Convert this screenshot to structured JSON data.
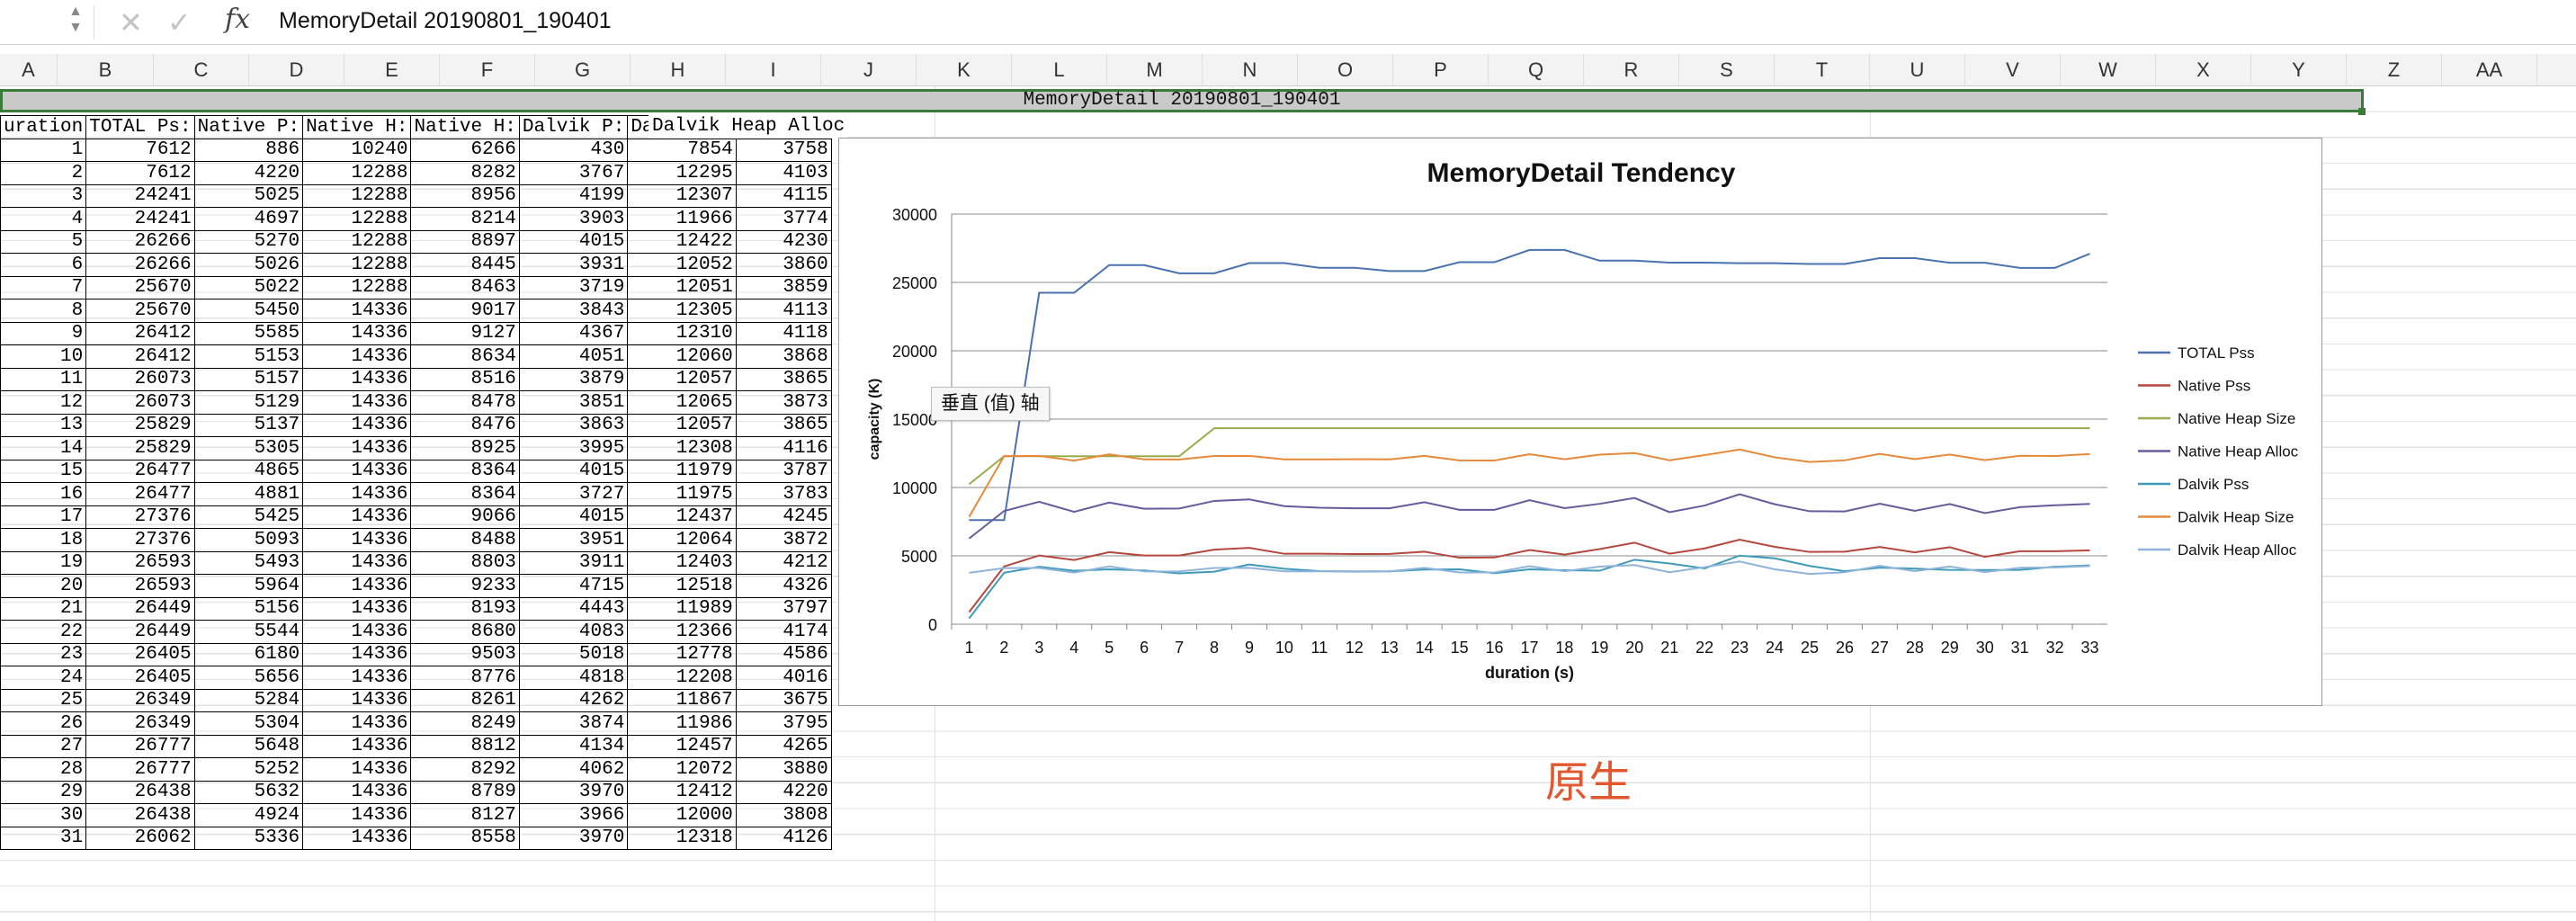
{
  "formula_bar": {
    "cancel_icon": "x-icon",
    "confirm_icon": "check-icon",
    "fx_label": "fx",
    "content": "MemoryDetail 20190801_190401"
  },
  "columns": [
    "A",
    "B",
    "C",
    "D",
    "E",
    "F",
    "G",
    "H",
    "I",
    "J",
    "K",
    "L",
    "M",
    "N",
    "O",
    "P",
    "Q",
    "R",
    "S",
    "T",
    "U",
    "V",
    "W",
    "X",
    "Y",
    "Z",
    "AA"
  ],
  "sheet": {
    "merged_title": "MemoryDetail 20190801_190401",
    "headers": [
      "uration",
      "TOTAL Ps:",
      "Native P:",
      "Native H:",
      "Native H:",
      "Dalvik P:",
      "Dalvik H:"
    ],
    "last_header": "Dalvik Heap Alloc",
    "rows": [
      [
        "1",
        "7612",
        "886",
        "10240",
        "6266",
        "430",
        "7854",
        "3758"
      ],
      [
        "2",
        "7612",
        "4220",
        "12288",
        "8282",
        "3767",
        "12295",
        "4103"
      ],
      [
        "3",
        "24241",
        "5025",
        "12288",
        "8956",
        "4199",
        "12307",
        "4115"
      ],
      [
        "4",
        "24241",
        "4697",
        "12288",
        "8214",
        "3903",
        "11966",
        "3774"
      ],
      [
        "5",
        "26266",
        "5270",
        "12288",
        "8897",
        "4015",
        "12422",
        "4230"
      ],
      [
        "6",
        "26266",
        "5026",
        "12288",
        "8445",
        "3931",
        "12052",
        "3860"
      ],
      [
        "7",
        "25670",
        "5022",
        "12288",
        "8463",
        "3719",
        "12051",
        "3859"
      ],
      [
        "8",
        "25670",
        "5450",
        "14336",
        "9017",
        "3843",
        "12305",
        "4113"
      ],
      [
        "9",
        "26412",
        "5585",
        "14336",
        "9127",
        "4367",
        "12310",
        "4118"
      ],
      [
        "10",
        "26412",
        "5153",
        "14336",
        "8634",
        "4051",
        "12060",
        "3868"
      ],
      [
        "11",
        "26073",
        "5157",
        "14336",
        "8516",
        "3879",
        "12057",
        "3865"
      ],
      [
        "12",
        "26073",
        "5129",
        "14336",
        "8478",
        "3851",
        "12065",
        "3873"
      ],
      [
        "13",
        "25829",
        "5137",
        "14336",
        "8476",
        "3863",
        "12057",
        "3865"
      ],
      [
        "14",
        "25829",
        "5305",
        "14336",
        "8925",
        "3995",
        "12308",
        "4116"
      ],
      [
        "15",
        "26477",
        "4865",
        "14336",
        "8364",
        "4015",
        "11979",
        "3787"
      ],
      [
        "16",
        "26477",
        "4881",
        "14336",
        "8364",
        "3727",
        "11975",
        "3783"
      ],
      [
        "17",
        "27376",
        "5425",
        "14336",
        "9066",
        "4015",
        "12437",
        "4245"
      ],
      [
        "18",
        "27376",
        "5093",
        "14336",
        "8488",
        "3951",
        "12064",
        "3872"
      ],
      [
        "19",
        "26593",
        "5493",
        "14336",
        "8803",
        "3911",
        "12403",
        "4212"
      ],
      [
        "20",
        "26593",
        "5964",
        "14336",
        "9233",
        "4715",
        "12518",
        "4326"
      ],
      [
        "21",
        "26449",
        "5156",
        "14336",
        "8193",
        "4443",
        "11989",
        "3797"
      ],
      [
        "22",
        "26449",
        "5544",
        "14336",
        "8680",
        "4083",
        "12366",
        "4174"
      ],
      [
        "23",
        "26405",
        "6180",
        "14336",
        "9503",
        "5018",
        "12778",
        "4586"
      ],
      [
        "24",
        "26405",
        "5656",
        "14336",
        "8776",
        "4818",
        "12208",
        "4016"
      ],
      [
        "25",
        "26349",
        "5284",
        "14336",
        "8261",
        "4262",
        "11867",
        "3675"
      ],
      [
        "26",
        "26349",
        "5304",
        "14336",
        "8249",
        "3874",
        "11986",
        "3795"
      ],
      [
        "27",
        "26777",
        "5648",
        "14336",
        "8812",
        "4134",
        "12457",
        "4265"
      ],
      [
        "28",
        "26777",
        "5252",
        "14336",
        "8292",
        "4062",
        "12072",
        "3880"
      ],
      [
        "29",
        "26438",
        "5632",
        "14336",
        "8789",
        "3970",
        "12412",
        "4220"
      ],
      [
        "30",
        "26438",
        "4924",
        "14336",
        "8127",
        "3966",
        "12000",
        "3808"
      ],
      [
        "31",
        "26062",
        "5336",
        "14336",
        "8558",
        "3970",
        "12318",
        "4126"
      ]
    ]
  },
  "tooltip": "垂直 (值) 轴",
  "note": "原生",
  "chart_data": {
    "type": "line",
    "title": "MemoryDetail Tendency",
    "xlabel": "duration (s)",
    "ylabel": "capacity (K)",
    "ylim": [
      0,
      30000
    ],
    "yticks": [
      0,
      5000,
      10000,
      15000,
      20000,
      25000,
      30000
    ],
    "grid": "horizontal",
    "legend": "right",
    "x": [
      1,
      2,
      3,
      4,
      5,
      6,
      7,
      8,
      9,
      10,
      11,
      12,
      13,
      14,
      15,
      16,
      17,
      18,
      19,
      20,
      21,
      22,
      23,
      24,
      25,
      26,
      27,
      28,
      29,
      30,
      31,
      32,
      33
    ],
    "series": [
      {
        "name": "TOTAL Pss",
        "color": "#4a72b0",
        "values": [
          7612,
          7612,
          24241,
          24241,
          26266,
          26266,
          25670,
          25670,
          26412,
          26412,
          26073,
          26073,
          25829,
          25829,
          26477,
          26477,
          27376,
          27376,
          26593,
          26593,
          26449,
          26449,
          26405,
          26405,
          26349,
          26349,
          26777,
          26777,
          26438,
          26438,
          26062,
          26062,
          27100
        ]
      },
      {
        "name": "Native Pss",
        "color": "#b5473d",
        "values": [
          886,
          4220,
          5025,
          4697,
          5270,
          5026,
          5022,
          5450,
          5585,
          5153,
          5157,
          5129,
          5137,
          5305,
          4865,
          4881,
          5425,
          5093,
          5493,
          5964,
          5156,
          5544,
          6180,
          5656,
          5284,
          5304,
          5648,
          5252,
          5632,
          4924,
          5336,
          5336,
          5400
        ]
      },
      {
        "name": "Native Heap Size",
        "color": "#9aac4a",
        "values": [
          10240,
          12288,
          12288,
          12288,
          12288,
          12288,
          12288,
          14336,
          14336,
          14336,
          14336,
          14336,
          14336,
          14336,
          14336,
          14336,
          14336,
          14336,
          14336,
          14336,
          14336,
          14336,
          14336,
          14336,
          14336,
          14336,
          14336,
          14336,
          14336,
          14336,
          14336,
          14336,
          14336
        ]
      },
      {
        "name": "Native Heap Alloc",
        "color": "#6a5a9c",
        "values": [
          6266,
          8282,
          8956,
          8214,
          8897,
          8445,
          8463,
          9017,
          9127,
          8634,
          8516,
          8478,
          8476,
          8925,
          8364,
          8364,
          9066,
          8488,
          8803,
          9233,
          8193,
          8680,
          9503,
          8776,
          8261,
          8249,
          8812,
          8292,
          8789,
          8127,
          8558,
          8700,
          8800
        ]
      },
      {
        "name": "Dalvik Pss",
        "color": "#3f9ab8",
        "values": [
          430,
          3767,
          4199,
          3903,
          4015,
          3931,
          3719,
          3843,
          4367,
          4051,
          3879,
          3851,
          3863,
          3995,
          4015,
          3727,
          4015,
          3951,
          3911,
          4715,
          4443,
          4083,
          5018,
          4818,
          4262,
          3874,
          4134,
          4062,
          3970,
          3966,
          3970,
          4200,
          4300
        ]
      },
      {
        "name": "Dalvik Heap Size",
        "color": "#e58a3a",
        "values": [
          7854,
          12295,
          12307,
          11966,
          12422,
          12052,
          12051,
          12305,
          12310,
          12060,
          12057,
          12065,
          12057,
          12308,
          11979,
          11975,
          12437,
          12064,
          12403,
          12518,
          11989,
          12366,
          12778,
          12208,
          11867,
          11986,
          12457,
          12072,
          12412,
          12000,
          12318,
          12300,
          12450
        ]
      },
      {
        "name": "Dalvik Heap Alloc",
        "color": "#8fb4dc",
        "values": [
          3758,
          4103,
          4115,
          3774,
          4230,
          3860,
          3859,
          4113,
          4118,
          3868,
          3865,
          3873,
          3865,
          4116,
          3787,
          3783,
          4245,
          3872,
          4212,
          4326,
          3797,
          4174,
          4586,
          4016,
          3675,
          3795,
          4265,
          3880,
          4220,
          3808,
          4126,
          4150,
          4250
        ]
      }
    ]
  }
}
